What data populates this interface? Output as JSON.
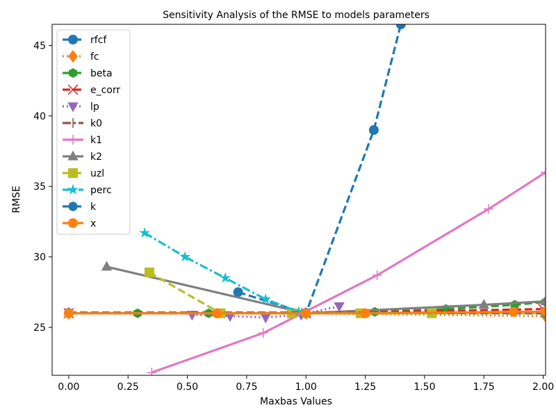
{
  "chart_data": {
    "type": "line",
    "title": "Sensitivity Analysis of the RMSE to models parameters",
    "xlabel": "Maxbas Values",
    "ylabel": "RMSE",
    "xlim": [
      -0.07,
      2.01
    ],
    "ylim": [
      21.6,
      46.5
    ],
    "xticks": [
      0.0,
      0.25,
      0.5,
      0.75,
      1.0,
      1.25,
      1.5,
      1.75,
      2.0
    ],
    "xtick_labels": [
      "0.00",
      "0.25",
      "0.50",
      "0.75",
      "1.00",
      "1.25",
      "1.50",
      "1.75",
      "2.00"
    ],
    "yticks": [
      25,
      30,
      35,
      40,
      45
    ],
    "ytick_labels": [
      "25",
      "30",
      "35",
      "40",
      "45"
    ],
    "grid": false,
    "legend_position": "upper-left",
    "series": [
      {
        "name": "rfcf",
        "color": "#1f77b4",
        "marker": "circle",
        "line": "dashed",
        "x": [
          0.714,
          1.0,
          1.286,
          1.4
        ],
        "y": [
          27.5,
          26.0,
          39.0,
          46.5
        ]
      },
      {
        "name": "fc",
        "color": "#ff7f0e",
        "marker": "diamond",
        "line": "dotted",
        "x": [
          0.0,
          1.0,
          2.01
        ],
        "y": [
          26.0,
          26.0,
          25.8
        ]
      },
      {
        "name": "beta",
        "color": "#2ca02c",
        "marker": "hexagon",
        "line": "dashed",
        "x": [
          0.0,
          0.29,
          0.59,
          1.0,
          1.29,
          1.59,
          1.88,
          2.01
        ],
        "y": [
          26.0,
          26.0,
          26.0,
          26.0,
          26.1,
          26.3,
          26.6,
          26.8
        ]
      },
      {
        "name": "e_corr",
        "color": "#d62728",
        "marker": "x",
        "line": "dashed",
        "x": [
          0.0,
          1.0,
          2.0
        ],
        "y": [
          26.0,
          26.0,
          26.3
        ]
      },
      {
        "name": "lp",
        "color": "#9467bd",
        "marker": "triangle-down",
        "line": "dotted",
        "x": [
          0.52,
          0.68,
          0.83,
          0.98,
          1.14
        ],
        "y": [
          25.9,
          25.8,
          25.7,
          25.9,
          26.5
        ]
      },
      {
        "name": "k0",
        "color": "#8c564b",
        "marker": "vline",
        "line": "dashdot",
        "x": [
          0.0,
          1.0,
          2.0
        ],
        "y": [
          26.0,
          26.0,
          26.1
        ]
      },
      {
        "name": "k1",
        "color": "#e377c2",
        "marker": "plus",
        "line": "solid",
        "x": [
          0.35,
          0.82,
          1.3,
          1.77,
          2.01
        ],
        "y": [
          21.8,
          24.6,
          28.7,
          33.4,
          36.0
        ]
      },
      {
        "name": "k2",
        "color": "#7f7f7f",
        "marker": "triangle-up",
        "line": "solid",
        "x": [
          0.16,
          1.0,
          1.75,
          2.01
        ],
        "y": [
          29.3,
          26.0,
          26.6,
          26.85
        ]
      },
      {
        "name": "uzl",
        "color": "#bcbd22",
        "marker": "square",
        "line": "dashed",
        "x": [
          0.34,
          0.64,
          0.94,
          1.23,
          1.53,
          2.01
        ],
        "y": [
          28.9,
          26.0,
          26.0,
          26.0,
          26.0,
          26.0
        ]
      },
      {
        "name": "perc",
        "color": "#17becf",
        "marker": "star",
        "line": "dashdot",
        "x": [
          0.32,
          0.49,
          0.66,
          0.83,
          0.97
        ],
        "y": [
          31.7,
          30.0,
          28.5,
          27.0,
          26.1
        ]
      },
      {
        "name": "k",
        "color": "#1f77b4",
        "marker": "octagon",
        "line": "dashed",
        "x": [
          0.0,
          1.0,
          2.01
        ],
        "y": [
          26.05,
          26.05,
          26.0
        ]
      },
      {
        "name": "x",
        "color": "#ff7f0e",
        "marker": "circle",
        "line": "solid",
        "x": [
          0.0,
          0.625,
          1.0,
          1.25,
          1.875,
          2.01
        ],
        "y": [
          26.0,
          26.0,
          26.0,
          26.0,
          26.1,
          26.1
        ]
      }
    ]
  }
}
